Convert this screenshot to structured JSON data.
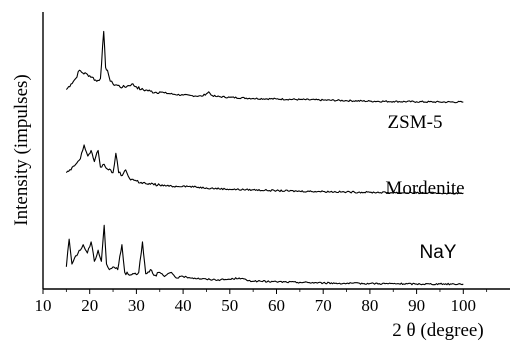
{
  "chart_data": {
    "type": "line",
    "title": "",
    "xlabel": "2 θ (degree)",
    "ylabel": "Intensity (impulses)",
    "xlim": [
      10,
      110
    ],
    "xticks": [
      10,
      20,
      30,
      40,
      50,
      60,
      70,
      80,
      90,
      100
    ],
    "grid": false,
    "y_tick_labels": false,
    "series": [
      {
        "name": "ZSM-5",
        "color": "#000000",
        "x": [
          15,
          16,
          17,
          17.8,
          18.5,
          19.5,
          20.5,
          21.5,
          22.3,
          23,
          23.4,
          23.8,
          24.4,
          25,
          26,
          27,
          28,
          29,
          30,
          31,
          32,
          33,
          34,
          35,
          36,
          38,
          40,
          42,
          44,
          45,
          45.5,
          46,
          47,
          50,
          55,
          60,
          65,
          70,
          75,
          80,
          85,
          90,
          95,
          100
        ],
        "y": [
          0.72,
          0.74,
          0.76,
          0.79,
          0.78,
          0.775,
          0.765,
          0.75,
          0.76,
          0.93,
          0.8,
          0.79,
          0.75,
          0.74,
          0.735,
          0.728,
          0.732,
          0.74,
          0.73,
          0.72,
          0.718,
          0.714,
          0.71,
          0.712,
          0.708,
          0.703,
          0.7,
          0.698,
          0.696,
          0.705,
          0.712,
          0.7,
          0.695,
          0.692,
          0.688,
          0.686,
          0.684,
          0.682,
          0.68,
          0.678,
          0.677,
          0.676,
          0.675,
          0.675
        ]
      },
      {
        "name": "Mordenite",
        "color": "#000000",
        "x": [
          15,
          16,
          17,
          18,
          18.8,
          19.6,
          20.3,
          21,
          21.8,
          22.3,
          23.1,
          24,
          25,
          25.6,
          26.2,
          27,
          27.7,
          28.5,
          30,
          31,
          32,
          33,
          35,
          38,
          40,
          45,
          50,
          55,
          60,
          65,
          70,
          75,
          80,
          85,
          90,
          95,
          100
        ],
        "y": [
          0.42,
          0.43,
          0.45,
          0.47,
          0.52,
          0.48,
          0.5,
          0.46,
          0.5,
          0.44,
          0.45,
          0.43,
          0.42,
          0.49,
          0.42,
          0.41,
          0.43,
          0.4,
          0.39,
          0.385,
          0.38,
          0.378,
          0.375,
          0.37,
          0.372,
          0.365,
          0.36,
          0.358,
          0.355,
          0.353,
          0.352,
          0.35,
          0.349,
          0.348,
          0.347,
          0.346,
          0.345
        ]
      },
      {
        "name": "NaY",
        "color": "#000000",
        "x": [
          15,
          15.6,
          16.2,
          17,
          18,
          18.6,
          19.5,
          20.3,
          21,
          21.8,
          22.5,
          23.1,
          23.6,
          24.2,
          25,
          26,
          26.9,
          27.5,
          28.5,
          29.5,
          30.5,
          31.3,
          32,
          33,
          34,
          35,
          36,
          37.5,
          38.5,
          40,
          42,
          45,
          48,
          50,
          52,
          54,
          56,
          60,
          65,
          70,
          75,
          80,
          85,
          90,
          95,
          100
        ],
        "y": [
          0.08,
          0.18,
          0.09,
          0.12,
          0.14,
          0.16,
          0.13,
          0.17,
          0.1,
          0.14,
          0.1,
          0.23,
          0.09,
          0.07,
          0.08,
          0.07,
          0.16,
          0.06,
          0.05,
          0.055,
          0.06,
          0.17,
          0.055,
          0.07,
          0.05,
          0.06,
          0.045,
          0.06,
          0.04,
          0.045,
          0.04,
          0.035,
          0.033,
          0.035,
          0.04,
          0.03,
          0.028,
          0.026,
          0.024,
          0.022,
          0.02,
          0.02,
          0.019,
          0.018,
          0.018,
          0.018
        ]
      }
    ],
    "series_labels": [
      "ZSM-5",
      "Mordenite",
      "NaY"
    ]
  }
}
